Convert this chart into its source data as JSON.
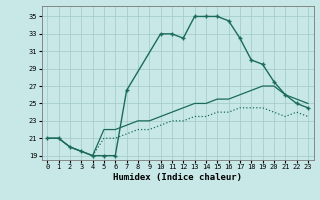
{
  "xlabel": "Humidex (Indice chaleur)",
  "background_color": "#c8e8e8",
  "grid_color": "#a0c8c8",
  "line_color": "#1a6b5a",
  "xlim": [
    -0.5,
    23.5
  ],
  "ylim": [
    18.5,
    36.2
  ],
  "xticks": [
    0,
    1,
    2,
    3,
    4,
    5,
    6,
    7,
    8,
    9,
    10,
    11,
    12,
    13,
    14,
    15,
    16,
    17,
    18,
    19,
    20,
    21,
    22,
    23
  ],
  "yticks": [
    19,
    21,
    23,
    25,
    27,
    29,
    31,
    33,
    35
  ],
  "curve1_x": [
    0,
    1,
    2,
    3,
    4,
    5,
    6,
    7,
    10,
    11,
    12,
    13,
    14,
    15,
    16,
    17,
    18,
    19,
    20,
    21,
    22,
    23
  ],
  "curve1_y": [
    21,
    21,
    20,
    19.5,
    19,
    19,
    19,
    26.5,
    33,
    33,
    32.5,
    35,
    35,
    35,
    34.5,
    32.5,
    30,
    29.5,
    27.5,
    26,
    25,
    24.5
  ],
  "curve2_x": [
    0,
    1,
    2,
    3,
    4,
    5,
    6,
    7,
    8,
    9,
    10,
    11,
    12,
    13,
    14,
    15,
    16,
    17,
    18,
    19,
    20,
    21,
    22,
    23
  ],
  "curve2_y": [
    21,
    21,
    20,
    19.5,
    19,
    22,
    22,
    22.5,
    23,
    23,
    23.5,
    24,
    24.5,
    25,
    25,
    25.5,
    25.5,
    26,
    26.5,
    27,
    27,
    26,
    25.5,
    25
  ],
  "curve3_x": [
    0,
    1,
    2,
    3,
    4,
    5,
    6,
    7,
    8,
    9,
    10,
    11,
    12,
    13,
    14,
    15,
    16,
    17,
    18,
    19,
    20,
    21,
    22,
    23
  ],
  "curve3_y": [
    21,
    21,
    20,
    19.5,
    19,
    21,
    21,
    21.5,
    22,
    22,
    22.5,
    23,
    23,
    23.5,
    23.5,
    24,
    24,
    24.5,
    24.5,
    24.5,
    24,
    23.5,
    24,
    23.5
  ]
}
